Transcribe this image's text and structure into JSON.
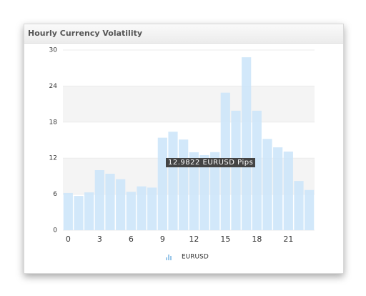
{
  "chart_data": {
    "type": "bar",
    "title": "Hourly Currency Volatility",
    "x": [
      0,
      1,
      2,
      3,
      4,
      5,
      6,
      7,
      8,
      9,
      10,
      11,
      12,
      13,
      14,
      15,
      16,
      17,
      18,
      19,
      20,
      21,
      22,
      23
    ],
    "series": [
      {
        "name": "EURUSD",
        "color": "#cde5fa",
        "values": [
          6.2,
          5.7,
          6.3,
          10,
          9.4,
          8.5,
          6.4,
          7.3,
          7.1,
          15.4,
          16.4,
          15.1,
          12.9822,
          12.5,
          13.0,
          22.9,
          19.9,
          28.8,
          19.9,
          15.2,
          13.8,
          13.1,
          8.2,
          6.7
        ]
      }
    ],
    "xlim": [
      -0.5,
      23.5
    ],
    "xticks": [
      0,
      3,
      6,
      9,
      12,
      15,
      18,
      21
    ],
    "ylim": [
      0,
      30
    ],
    "yticks": [
      0,
      6,
      12,
      18,
      24,
      30
    ],
    "tooltip": "12.9822 EURUSD Pips",
    "legend": "bottom"
  }
}
